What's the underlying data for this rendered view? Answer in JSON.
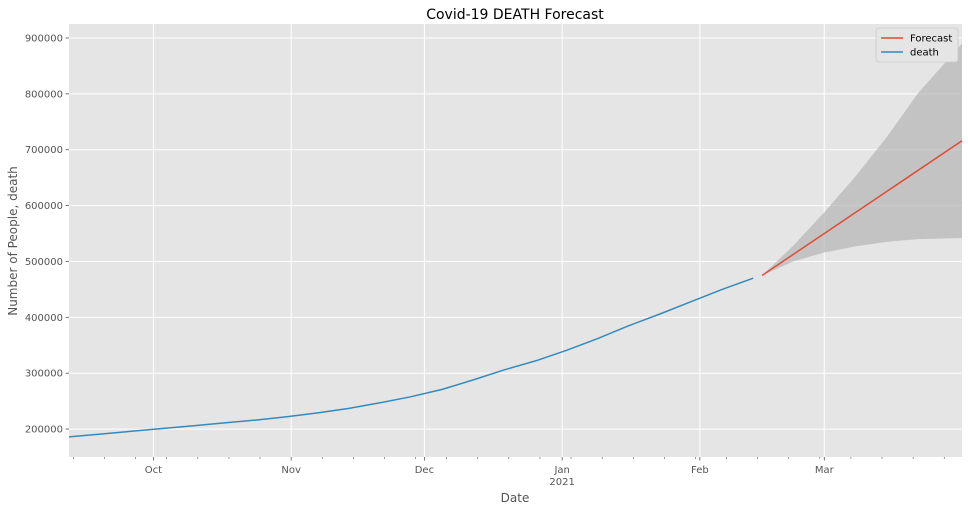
{
  "chart_data": {
    "type": "line",
    "title": "Covid-19 DEATH Forecast",
    "xlabel": "Date",
    "ylabel": "Number of People, death",
    "x_range": [
      "2020-09-12",
      "2021-04-01"
    ],
    "ylim": [
      150000,
      925000
    ],
    "grid": true,
    "legend_position": "top-right",
    "y_ticks": [
      200000,
      300000,
      400000,
      500000,
      600000,
      700000,
      800000,
      900000
    ],
    "y_tick_labels": [
      "200000",
      "300000",
      "400000",
      "500000",
      "600000",
      "700000",
      "800000",
      "900000"
    ],
    "x_major_ticks": [
      {
        "date": "2020-10-01",
        "label": "Oct",
        "sublabel": ""
      },
      {
        "date": "2020-11-01",
        "label": "Nov",
        "sublabel": ""
      },
      {
        "date": "2020-12-01",
        "label": "Dec",
        "sublabel": ""
      },
      {
        "date": "2021-01-01",
        "label": "Jan",
        "sublabel": "2021"
      },
      {
        "date": "2021-02-01",
        "label": "Feb",
        "sublabel": ""
      },
      {
        "date": "2021-03-01",
        "label": "Mar",
        "sublabel": ""
      }
    ],
    "x_minor_ticks": [
      "2020-09-13",
      "2020-09-20",
      "2020-09-27",
      "2020-10-04",
      "2020-10-11",
      "2020-10-18",
      "2020-10-25",
      "2020-11-08",
      "2020-11-15",
      "2020-11-22",
      "2020-11-29",
      "2020-12-06",
      "2020-12-13",
      "2020-12-20",
      "2020-12-27",
      "2021-01-03",
      "2021-01-10",
      "2021-01-17",
      "2021-01-24",
      "2021-01-31",
      "2021-02-07",
      "2021-02-14",
      "2021-02-21",
      "2021-02-28",
      "2021-03-07",
      "2021-03-14",
      "2021-03-21",
      "2021-03-28"
    ],
    "colors": {
      "plot_bg": "#e5e5e5",
      "grid": "#ffffff",
      "death": "#348abd",
      "forecast": "#e24a33",
      "interval": "#b0b0b0",
      "frame": "#cccccc"
    },
    "series": [
      {
        "name": "Forecast",
        "x": [
          "2021-02-15",
          "2021-04-01"
        ],
        "y": [
          475000,
          716000
        ],
        "lower": {
          "x": [
            "2021-02-15",
            "2021-02-22",
            "2021-03-01",
            "2021-03-08",
            "2021-03-15",
            "2021-03-22",
            "2021-04-01"
          ],
          "y": [
            475000,
            500000,
            516000,
            527000,
            535000,
            540000,
            542000
          ]
        },
        "upper": {
          "x": [
            "2021-02-15",
            "2021-02-22",
            "2021-03-01",
            "2021-03-08",
            "2021-03-15",
            "2021-03-22",
            "2021-04-01"
          ],
          "y": [
            475000,
            528000,
            588000,
            652000,
            722000,
            800000,
            890000
          ]
        }
      },
      {
        "name": "death",
        "x": [
          "2020-09-12",
          "2020-09-19",
          "2020-09-26",
          "2020-10-03",
          "2020-10-10",
          "2020-10-17",
          "2020-10-24",
          "2020-10-31",
          "2020-11-07",
          "2020-11-14",
          "2020-11-21",
          "2020-11-28",
          "2020-12-05",
          "2020-12-12",
          "2020-12-19",
          "2020-12-26",
          "2021-01-02",
          "2021-01-09",
          "2021-01-16",
          "2021-01-23",
          "2021-01-30",
          "2021-02-06",
          "2021-02-13"
        ],
        "y": [
          186000,
          191000,
          196000,
          201000,
          206000,
          211000,
          216000,
          222000,
          229000,
          237000,
          247000,
          258000,
          271000,
          288000,
          306000,
          322000,
          341000,
          362000,
          385000,
          406000,
          428000,
          450000,
          470000
        ]
      }
    ]
  }
}
